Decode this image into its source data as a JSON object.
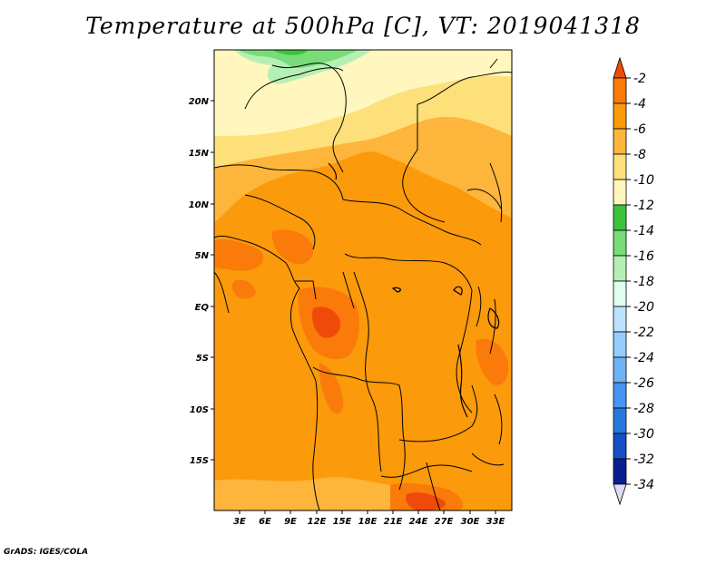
{
  "title": "Temperature at 500hPa [C], VT: 2019041318",
  "credit": "GrADS: IGES/COLA",
  "map": {
    "lat_labels": [
      "20N",
      "15N",
      "10N",
      "5N",
      "EQ",
      "5S",
      "10S",
      "15S"
    ],
    "lon_labels": [
      "3E",
      "6E",
      "9E",
      "12E",
      "15E",
      "18E",
      "21E",
      "24E",
      "27E",
      "30E",
      "33E"
    ]
  },
  "colorbar": {
    "labels": [
      "-2",
      "-4",
      "-6",
      "-8",
      "-10",
      "-12",
      "-14",
      "-16",
      "-18",
      "-20",
      "-22",
      "-24",
      "-26",
      "-28",
      "-30",
      "-32",
      "-34"
    ],
    "colors": [
      "#f04a0a",
      "#fa7a0a",
      "#fb9a0a",
      "#fdb53b",
      "#fde07a",
      "#fff7bd",
      "#3cc33c",
      "#78dc78",
      "#b4f0b4",
      "#e1fff0",
      "#bde2ff",
      "#96cdff",
      "#6eb4f4",
      "#4696f0",
      "#2878dc",
      "#1450c4",
      "#0a1e8c",
      "#dcdcf4"
    ]
  }
}
